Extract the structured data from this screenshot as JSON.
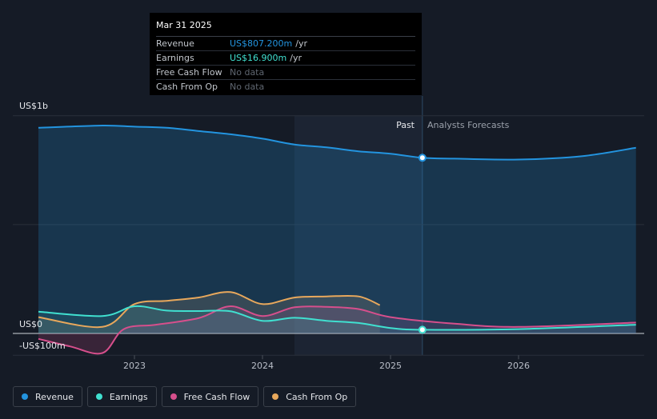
{
  "tooltip": {
    "date": "Mar 31 2025",
    "rows": [
      {
        "label": "Revenue",
        "value": "US$807.200m",
        "unit": "/yr"
      },
      {
        "label": "Earnings",
        "value": "US$16.900m",
        "unit": "/yr"
      },
      {
        "label": "Free Cash Flow",
        "value": "No data",
        "unit": ""
      },
      {
        "label": "Cash From Op",
        "value": "No data",
        "unit": ""
      }
    ]
  },
  "period_labels": {
    "past": "Past",
    "forecast": "Analysts Forecasts"
  },
  "legend": [
    {
      "label": "Revenue",
      "color": "#2394df"
    },
    {
      "label": "Earnings",
      "color": "#40e0d0"
    },
    {
      "label": "Free Cash Flow",
      "color": "#d64f8c"
    },
    {
      "label": "Cash From Op",
      "color": "#e8a85c"
    }
  ],
  "chart_data": {
    "type": "area",
    "y_axis": {
      "unit_labels": [
        "US$1b",
        "US$0",
        "-US$100m"
      ],
      "ylim": [
        -100,
        1000
      ]
    },
    "x_axis": {
      "ticks": [
        "2023",
        "2024",
        "2025",
        "2026"
      ],
      "range": [
        "2022-04",
        "2026-12"
      ]
    },
    "grid": true,
    "past_forecast_split": "2025-03-31",
    "highlight_point": {
      "x": "2025-03-31",
      "revenue": 807.2,
      "earnings": 16.9
    },
    "series": [
      {
        "name": "Revenue",
        "color": "#2394df",
        "x": [
          "2022-04",
          "2022-10",
          "2023-01",
          "2023-04",
          "2023-07",
          "2023-10",
          "2024-01",
          "2024-04",
          "2024-07",
          "2024-10",
          "2025-01",
          "2025-03-31",
          "2025-07",
          "2026-01",
          "2026-07",
          "2026-12"
        ],
        "values": [
          945,
          955,
          950,
          945,
          930,
          915,
          895,
          868,
          855,
          837,
          826,
          807,
          803,
          799,
          815,
          853
        ]
      },
      {
        "name": "Earnings",
        "color": "#40e0d0",
        "x": [
          "2022-04",
          "2022-10",
          "2023-01",
          "2023-04",
          "2023-07",
          "2023-10",
          "2024-01",
          "2024-04",
          "2024-07",
          "2024-10",
          "2025-01",
          "2025-03-31",
          "2026-01",
          "2026-12"
        ],
        "values": [
          100,
          80,
          125,
          105,
          103,
          102,
          58,
          72,
          58,
          48,
          25,
          16.9,
          20,
          40
        ]
      },
      {
        "name": "Free Cash Flow",
        "color": "#d64f8c",
        "x": [
          "2022-04",
          "2022-07",
          "2022-10",
          "2022-12",
          "2023-03",
          "2023-07",
          "2023-10",
          "2024-01",
          "2024-04",
          "2024-07",
          "2024-10",
          "2025-01",
          "2025-07",
          "2026-01",
          "2026-12"
        ],
        "values": [
          -25,
          -60,
          -90,
          20,
          40,
          70,
          125,
          80,
          120,
          122,
          112,
          75,
          45,
          30,
          50
        ]
      },
      {
        "name": "Cash From Op",
        "color": "#e8a85c",
        "x": [
          "2022-04",
          "2022-10",
          "2023-01",
          "2023-04",
          "2023-07",
          "2023-10",
          "2024-01",
          "2024-04",
          "2024-07",
          "2024-10",
          "2024-12"
        ],
        "values": [
          75,
          30,
          135,
          150,
          165,
          190,
          135,
          165,
          170,
          170,
          130
        ]
      }
    ]
  }
}
